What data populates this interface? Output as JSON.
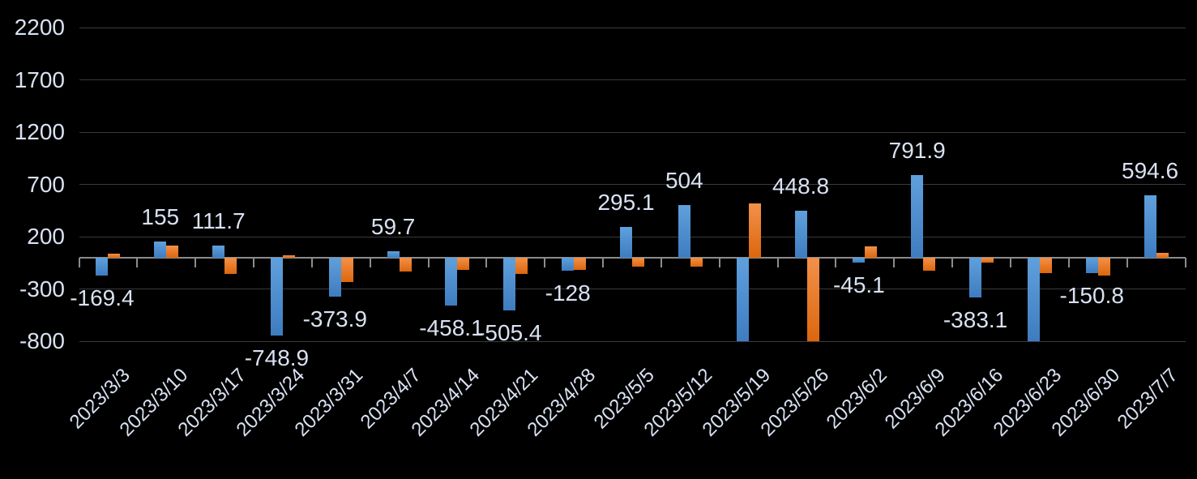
{
  "chart_data": {
    "type": "bar",
    "title": "",
    "legend": "none",
    "grid": true,
    "categories": [
      "2023/3/3",
      "2023/3/10",
      "2023/3/17",
      "2023/3/24",
      "2023/3/31",
      "2023/4/7",
      "2023/4/14",
      "2023/4/21",
      "2023/4/28",
      "2023/5/5",
      "2023/5/12",
      "2023/5/19",
      "2023/5/26",
      "2023/6/2",
      "2023/6/9",
      "2023/6/16",
      "2023/6/23",
      "2023/6/30",
      "2023/7/7"
    ],
    "series": [
      {
        "name": "blue-series",
        "values": [
          -169.4,
          155,
          111.7,
          -748.9,
          -373.9,
          59.7,
          -458.1,
          -505.4,
          -128,
          295.1,
          504,
          -800,
          448.8,
          -45.1,
          791.9,
          -383.1,
          -800,
          -150.8,
          594.6
        ],
        "data_labels": [
          "-169.4",
          "155",
          "111.7",
          "-748.9",
          "-373.9",
          "59.7",
          "-458.1",
          "-505.4",
          "-128",
          "295.1",
          "504",
          "",
          "448.8",
          "-45.1",
          "791.9",
          "-383.1",
          "",
          "-150.8",
          "594.6"
        ],
        "color": "#4E8BCD",
        "color_top": "#5FA0DC",
        "color_bottom": "#3E7CC0"
      },
      {
        "name": "orange-series",
        "values": [
          35,
          115,
          -160,
          25,
          -235,
          -130,
          -115,
          -155,
          -115,
          -90,
          -90,
          520,
          -800,
          105,
          -125,
          -50,
          -145,
          -175,
          45
        ],
        "data_labels": [
          "",
          "",
          "",
          "",
          "",
          "",
          "",
          "",
          "",
          "",
          "",
          "",
          "",
          "",
          "",
          "",
          "",
          "",
          ""
        ],
        "color": "#ED7D31",
        "color_top": "#F2914A",
        "color_bottom": "#DD660D"
      }
    ],
    "y_axis": {
      "ticks": [
        2200,
        1700,
        1200,
        700,
        200,
        -300,
        -800
      ],
      "min": -800,
      "max": 2200
    },
    "colors": {
      "background": "#000000",
      "text": "#D9E1F2",
      "gridline": "#3A3A3A",
      "axis": "#8C8C8C"
    }
  }
}
